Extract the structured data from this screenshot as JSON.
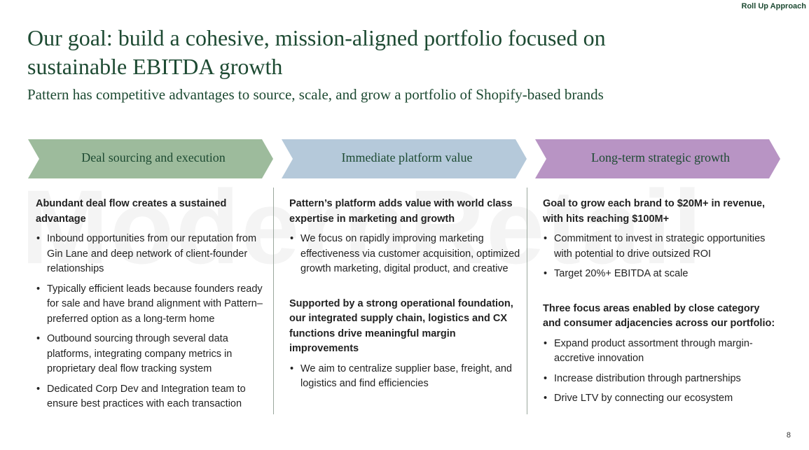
{
  "header": {
    "tag": "Roll Up Approach",
    "title": "Our goal: build a cohesive, mission-aligned portfolio focused on sustainable EBITDA growth",
    "subtitle": "Pattern has competitive advantages to source, scale, and grow a portfolio of Shopify-based brands"
  },
  "watermark": "ModernRetail",
  "columns": [
    {
      "label": "Deal sourcing and execution",
      "color": "#9dbb9c",
      "sections": [
        {
          "heading": "Abundant deal flow creates a sustained advantage",
          "bullets": [
            "Inbound opportunities from our reputation from Gin Lane and deep network of client-founder relationships",
            "Typically efficient leads because founders ready for sale and have brand alignment with Pattern–preferred option as a long-term home",
            "Outbound sourcing through several data platforms, integrating company metrics in proprietary deal flow tracking system",
            "Dedicated Corp Dev and Integration team to ensure best practices with each transaction"
          ]
        }
      ]
    },
    {
      "label": "Immediate platform value",
      "color": "#b5c9da",
      "sections": [
        {
          "heading": "Pattern’s platform adds value with world class expertise in marketing and growth",
          "bullets": [
            "We focus on rapidly improving marketing effectiveness via customer acquisition, optimized growth marketing, digital product, and creative"
          ]
        },
        {
          "heading": "Supported by a strong operational foundation, our integrated supply chain, logistics and CX functions drive meaningful margin improvements",
          "bullets": [
            "We aim to centralize supplier base, freight, and logistics and find efficiencies"
          ]
        }
      ]
    },
    {
      "label": "Long-term strategic growth",
      "color": "#b894c4",
      "sections": [
        {
          "heading": "Goal to grow each brand to $20M+ in revenue, with hits reaching $100M+",
          "bullets": [
            "Commitment to invest in strategic opportunities with potential to drive outsized ROI",
            "Target 20%+ EBITDA at scale"
          ]
        },
        {
          "heading": "Three focus areas enabled by close category and consumer adjacencies across our portfolio:",
          "bullets": [
            "Expand product assortment through margin-accretive innovation",
            "Increase distribution through partnerships",
            "Drive LTV by connecting our ecosystem"
          ]
        }
      ]
    }
  ],
  "page_number": "8"
}
